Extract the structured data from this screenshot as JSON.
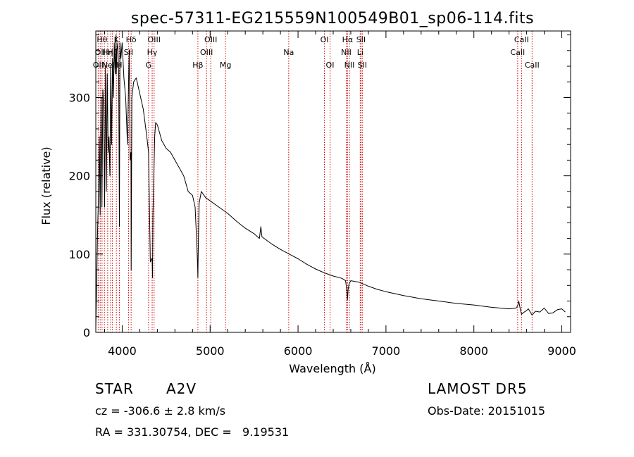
{
  "chart_data": {
    "type": "line",
    "title": "spec-57311-EG215559N100549B01_sp06-114.fits",
    "xlabel": "Wavelength (Å)",
    "ylabel": "Flux (relative)",
    "xlim": [
      3700,
      9100
    ],
    "ylim": [
      0,
      385
    ],
    "x_ticks": [
      4000,
      5000,
      6000,
      7000,
      8000,
      9000
    ],
    "y_ticks": [
      0,
      100,
      200,
      300
    ],
    "series": [
      {
        "color": "#000000",
        "x": [
          3700,
          3710,
          3720,
          3730,
          3740,
          3750,
          3760,
          3770,
          3780,
          3790,
          3800,
          3810,
          3820,
          3830,
          3840,
          3850,
          3860,
          3870,
          3880,
          3890,
          3900,
          3910,
          3920,
          3930,
          3933,
          3940,
          3950,
          3960,
          3968,
          3975,
          3985,
          4000,
          4020,
          4040,
          4060,
          4080,
          4090,
          4100,
          4102,
          4110,
          4130,
          4160,
          4200,
          4240,
          4280,
          4300,
          4320,
          4340,
          4345,
          4350,
          4370,
          4380,
          4400,
          4450,
          4500,
          4550,
          4600,
          4650,
          4700,
          4750,
          4800,
          4830,
          4850,
          4858,
          4861,
          4866,
          4875,
          4900,
          4950,
          5000,
          5100,
          5200,
          5300,
          5400,
          5500,
          5560,
          5577,
          5590,
          5650,
          5700,
          5800,
          5900,
          6000,
          6100,
          6200,
          6300,
          6400,
          6500,
          6540,
          6558,
          6563,
          6570,
          6580,
          6600,
          6700,
          6800,
          6900,
          7000,
          7200,
          7400,
          7600,
          7800,
          8000,
          8200,
          8400,
          8480,
          8498,
          8510,
          8530,
          8542,
          8560,
          8600,
          8620,
          8662,
          8700,
          8750,
          8800,
          8850,
          8900,
          8950,
          9000,
          9040
        ],
        "y": [
          5,
          60,
          130,
          170,
          250,
          150,
          300,
          160,
          310,
          290,
          160,
          340,
          180,
          330,
          230,
          250,
          200,
          340,
          240,
          350,
          300,
          370,
          330,
          380,
          330,
          360,
          370,
          330,
          135,
          370,
          350,
          370,
          325,
          300,
          240,
          360,
          220,
          230,
          80,
          300,
          320,
          325,
          305,
          285,
          250,
          230,
          90,
          95,
          70,
          150,
          250,
          268,
          265,
          245,
          235,
          230,
          220,
          210,
          200,
          180,
          175,
          160,
          110,
          85,
          70,
          110,
          165,
          180,
          172,
          168,
          160,
          152,
          142,
          133,
          126,
          120,
          135,
          122,
          117,
          113,
          106,
          100,
          94,
          87,
          81,
          76,
          72,
          69,
          66,
          52,
          42,
          55,
          62,
          66,
          64,
          59,
          55,
          52,
          47,
          43,
          40,
          37,
          35,
          32,
          30,
          31,
          34,
          40,
          28,
          23,
          25,
          28,
          30,
          22,
          27,
          26,
          31,
          24,
          25,
          29,
          30,
          26
        ]
      }
    ],
    "line_markers": [
      {
        "w": 3727,
        "row": 2,
        "label": "OII"
      },
      {
        "w": 3750,
        "row": 1,
        "label": "OII"
      },
      {
        "w": 3771,
        "row": 0,
        "label": "Hθ"
      },
      {
        "w": 3798,
        "row": 0,
        "label": ""
      },
      {
        "w": 3835,
        "row": 1,
        "label": "Hη"
      },
      {
        "w": 3869,
        "row": 2,
        "label": "NeIII"
      },
      {
        "w": 3889,
        "row": 1,
        "label": "Hζ"
      },
      {
        "w": 3934,
        "row": 0,
        "label": "K"
      },
      {
        "w": 3968,
        "row": 2,
        "label": "H"
      },
      {
        "w": 4072,
        "row": 1,
        "label": "SII"
      },
      {
        "w": 4102,
        "row": 0,
        "label": "Hδ"
      },
      {
        "w": 4300,
        "row": 2,
        "label": "G"
      },
      {
        "w": 4341,
        "row": 1,
        "label": "Hγ"
      },
      {
        "w": 4363,
        "row": 0,
        "label": "OIII"
      },
      {
        "w": 4861,
        "row": 2,
        "label": "Hβ"
      },
      {
        "w": 4959,
        "row": 1,
        "label": "OIII"
      },
      {
        "w": 5007,
        "row": 0,
        "label": "OIII"
      },
      {
        "w": 5175,
        "row": 2,
        "label": "Mg"
      },
      {
        "w": 5894,
        "row": 1,
        "label": "Na"
      },
      {
        "w": 6300,
        "row": 0,
        "label": "OI"
      },
      {
        "w": 6364,
        "row": 2,
        "label": "OI"
      },
      {
        "w": 6548,
        "row": 1,
        "label": "NII"
      },
      {
        "w": 6563,
        "row": 0,
        "label": "Hα"
      },
      {
        "w": 6584,
        "row": 2,
        "label": "NII"
      },
      {
        "w": 6707,
        "row": 1,
        "label": "Li"
      },
      {
        "w": 6716,
        "row": 0,
        "label": "SII"
      },
      {
        "w": 6731,
        "row": 2,
        "label": "SII"
      },
      {
        "w": 8498,
        "row": 1,
        "label": "CaII"
      },
      {
        "w": 8542,
        "row": 0,
        "label": "CaII"
      },
      {
        "w": 8662,
        "row": 2,
        "label": "CaII"
      }
    ],
    "marker_color": "#cc0000"
  },
  "info": {
    "object_class": "STAR",
    "subclass": "A2V",
    "survey": "LAMOST DR5",
    "redshift": "cz = -306.6 ± 2.8 km/s",
    "obs_date": "Obs-Date: 20151015",
    "coords": "RA = 331.30754, DEC =   9.19531"
  }
}
